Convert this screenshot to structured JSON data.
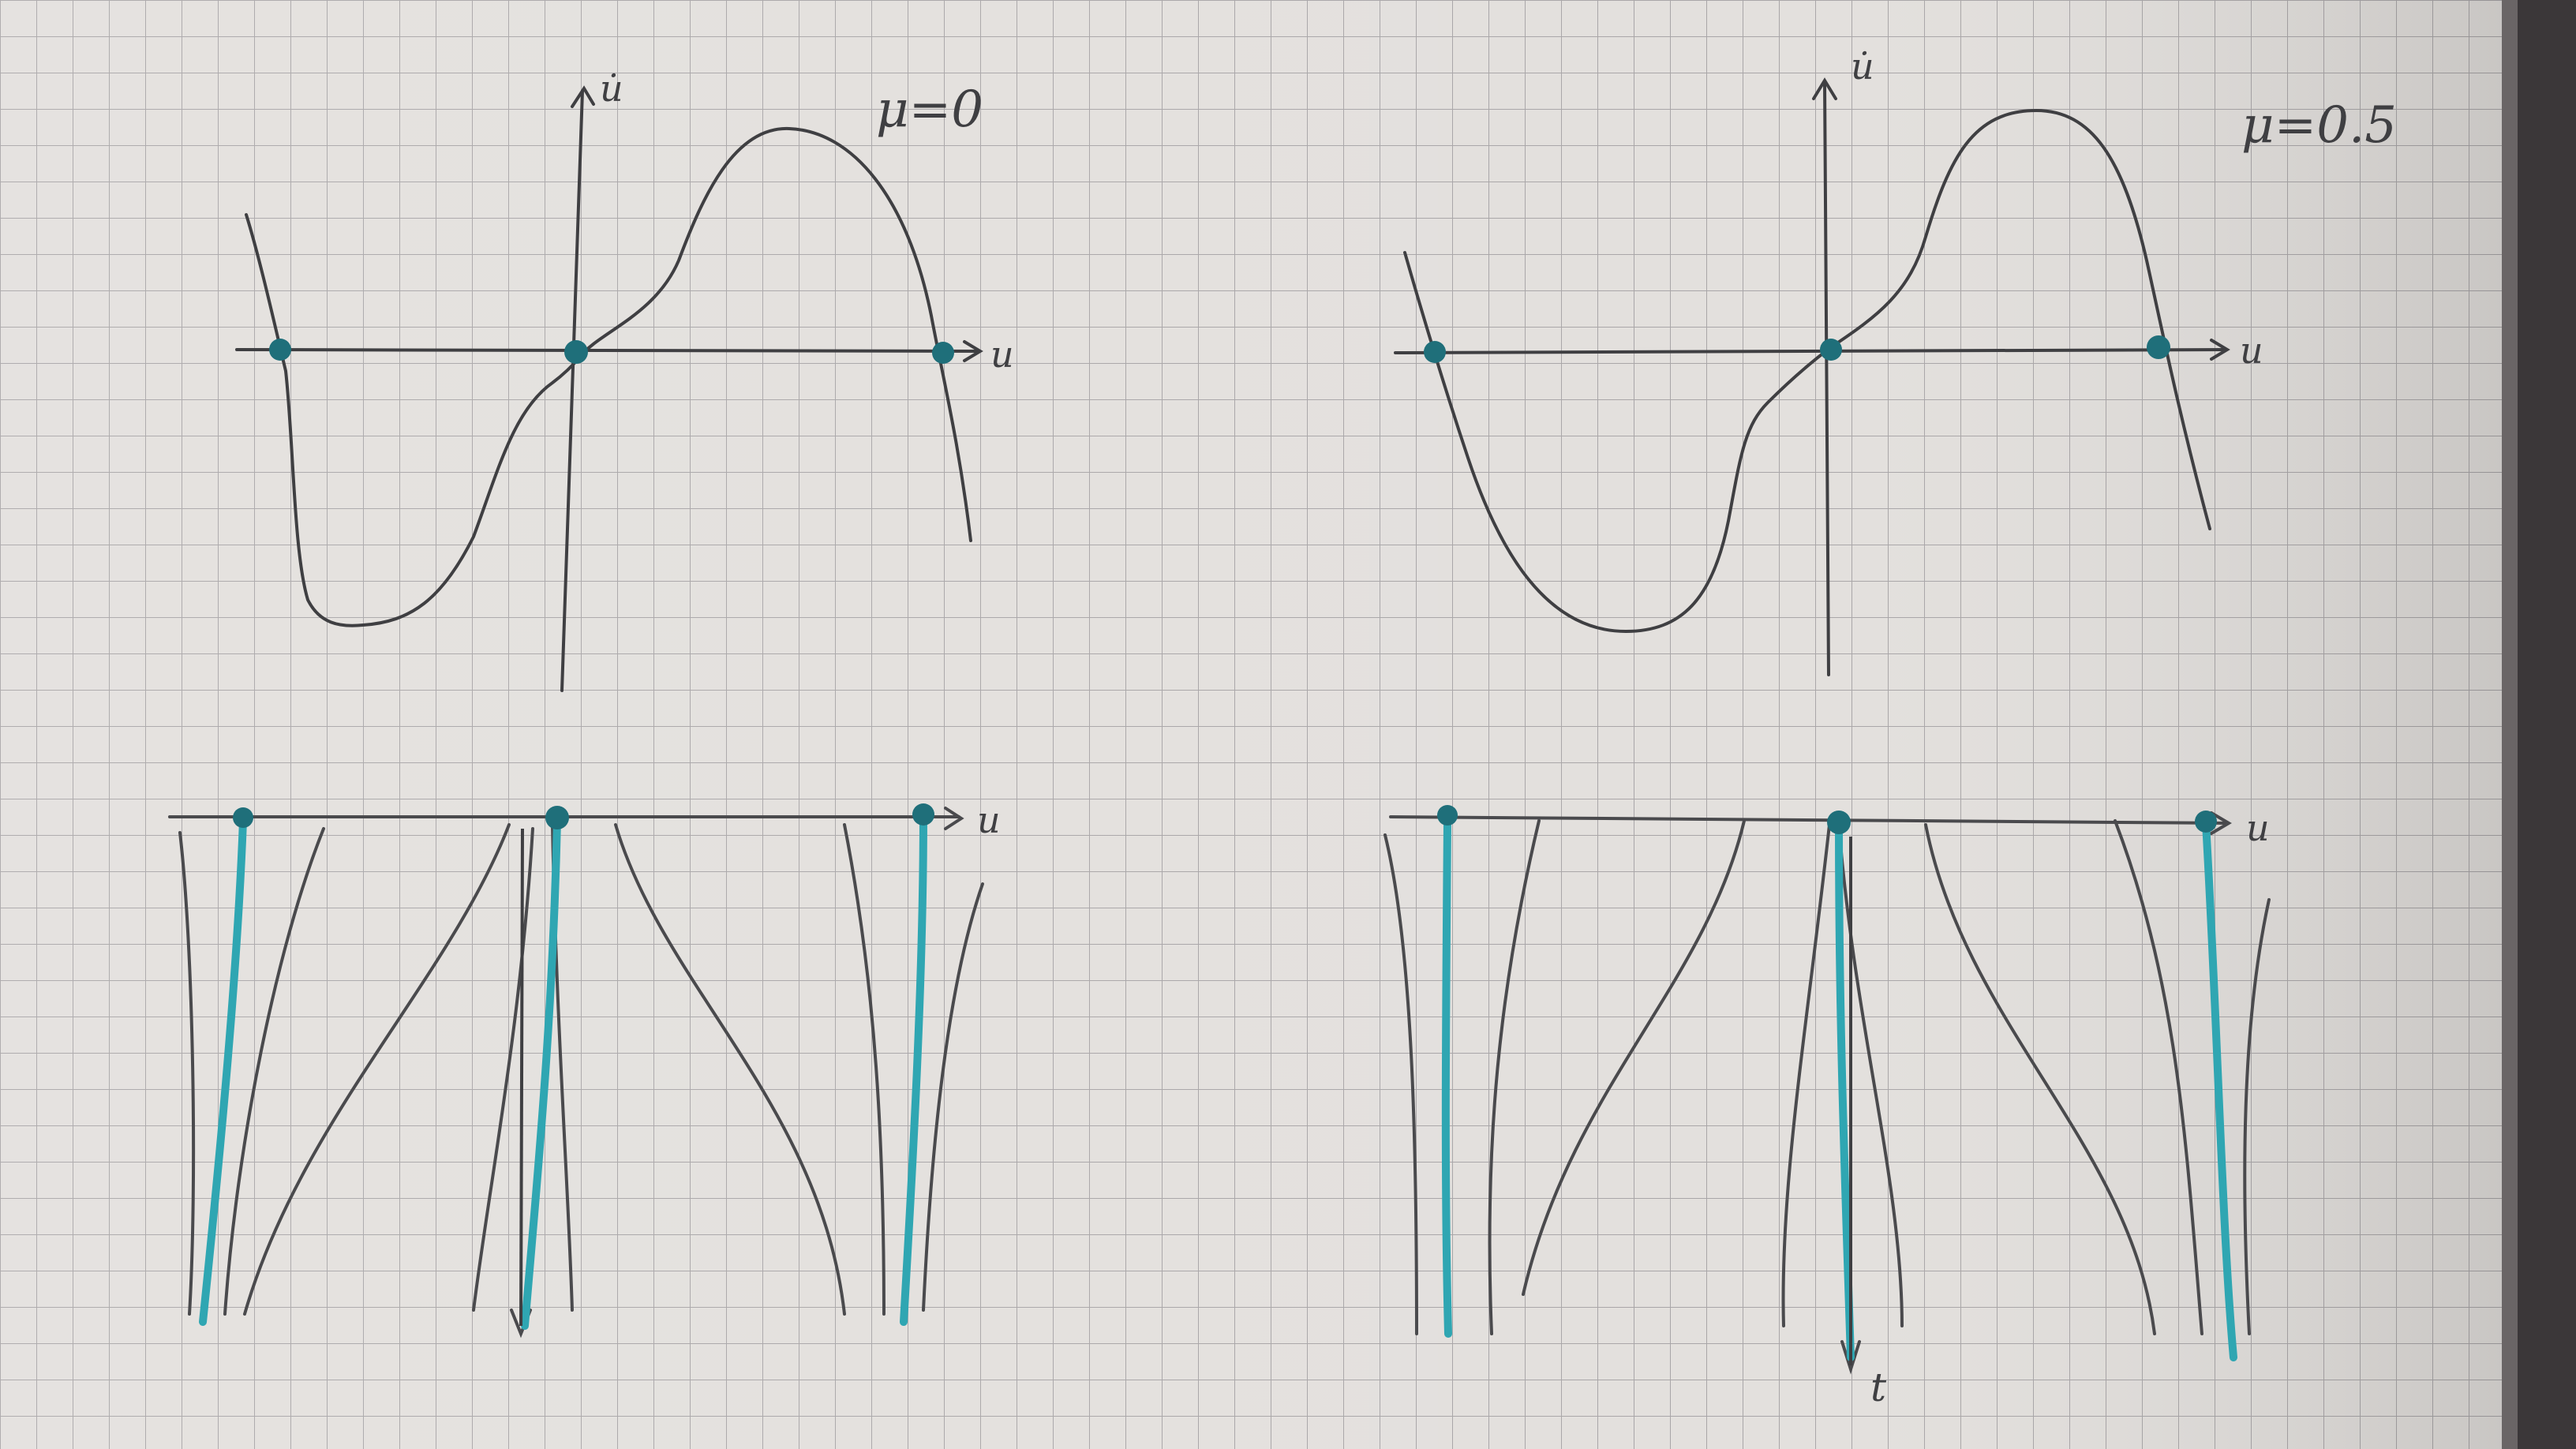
{
  "panels": {
    "left": {
      "mu_label": "μ=0",
      "ydot_axis_label": "u̇",
      "u_axis_label_top": "u",
      "u_axis_label_bottom": "u"
    },
    "right": {
      "mu_label": "μ=0.5",
      "ydot_axis_label": "u̇",
      "u_axis_label_top": "u",
      "u_axis_label_bottom": "u",
      "t_axis_label": "t"
    }
  },
  "colors": {
    "paper": "#e3e0dd",
    "grid": "#a9a6a8",
    "pencil": "#3f3f42",
    "fixed_point_teal": "#2fa6b2",
    "dot_teal": "#1f6f7a"
  }
}
